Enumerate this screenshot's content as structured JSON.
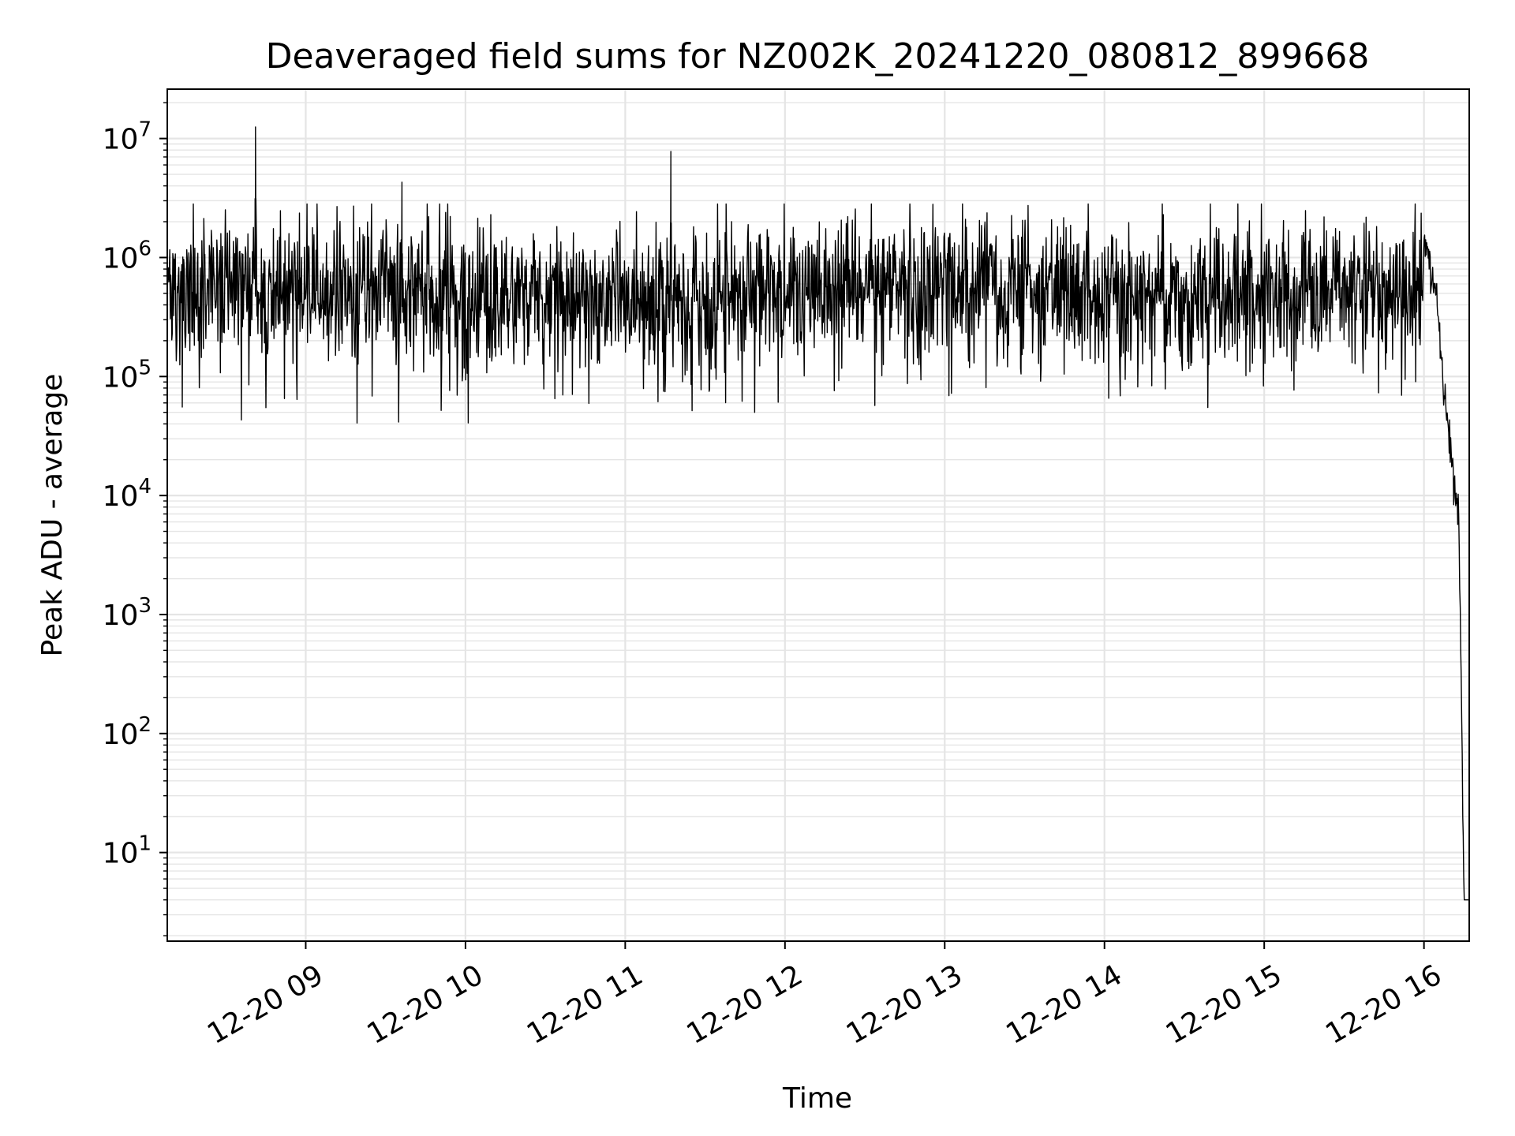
{
  "chart_data": {
    "type": "line",
    "title": "Deaveraged field sums for NZ002K_20241220_080812_899668",
    "xlabel": "Time",
    "ylabel": "Peak ADU - average",
    "yscale": "log",
    "grid": "both (major and minor)",
    "line_color": "#000000",
    "grid_color": "#e5e5e5",
    "x_start": "2024-12-20 08:08",
    "x_end": "2024-12-20 16:17",
    "ylim": [
      1.8,
      26000000
    ],
    "x_ticks": [
      "12-20 09",
      "12-20 10",
      "12-20 11",
      "12-20 12",
      "12-20 13",
      "12-20 14",
      "12-20 15",
      "12-20 16"
    ],
    "y_ticks": [
      {
        "base": "10",
        "exp": "1"
      },
      {
        "base": "10",
        "exp": "2"
      },
      {
        "base": "10",
        "exp": "3"
      },
      {
        "base": "10",
        "exp": "4"
      },
      {
        "base": "10",
        "exp": "5"
      },
      {
        "base": "10",
        "exp": "6"
      },
      {
        "base": "10",
        "exp": "7"
      }
    ],
    "series": [
      {
        "baseline_median_approx": 600000,
        "x": [
          "2024-12-20 08:08",
          "2024-12-20 08:20",
          "2024-12-20 08:40",
          "2024-12-20 08:41",
          "2024-12-20 08:42",
          "2024-12-20 09:00",
          "2024-12-20 09:20",
          "2024-12-20 09:35",
          "2024-12-20 09:36",
          "2024-12-20 09:37",
          "2024-12-20 10:00",
          "2024-12-20 10:30",
          "2024-12-20 11:00",
          "2024-12-20 11:16",
          "2024-12-20 11:17",
          "2024-12-20 11:18",
          "2024-12-20 11:40",
          "2024-12-20 12:00",
          "2024-12-20 12:20",
          "2024-12-20 13:00",
          "2024-12-20 13:30",
          "2024-12-20 14:00",
          "2024-12-20 14:30",
          "2024-12-20 15:00",
          "2024-12-20 15:20",
          "2024-12-20 15:40",
          "2024-12-20 15:55",
          "2024-12-20 15:58",
          "2024-12-20 16:02",
          "2024-12-20 16:05",
          "2024-12-20 16:07",
          "2024-12-20 16:09",
          "2024-12-20 16:11",
          "2024-12-20 16:13",
          "2024-12-20 16:14",
          "2024-12-20 16:15",
          "2024-12-20 16:17"
        ],
        "y": [
          700000,
          500000,
          900000,
          12500000,
          800000,
          600000,
          700000,
          800000,
          4300000,
          700000,
          800000,
          700000,
          700000,
          500000,
          7800000,
          600000,
          700000,
          500000,
          700000,
          500000,
          400000,
          500000,
          400000,
          500000,
          700000,
          700000,
          1000000,
          2400000,
          900000,
          400000,
          100000,
          40000,
          14000,
          7000,
          300,
          4,
          4
        ]
      }
    ]
  }
}
